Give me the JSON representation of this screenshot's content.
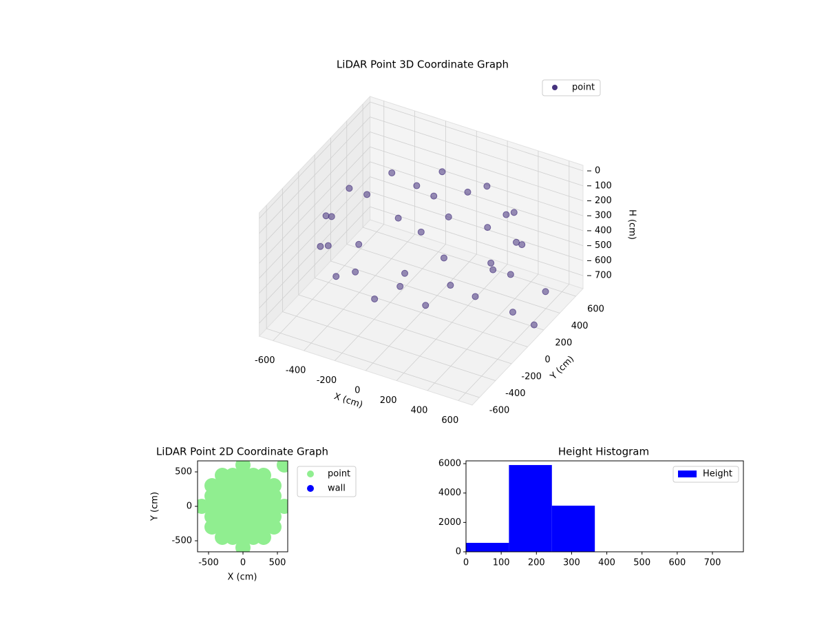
{
  "chart_data": [
    {
      "type": "scatter3d",
      "title": "LiDAR Point 3D Coordinate Graph",
      "xlabel": "X (cm)",
      "ylabel": "Y (cm)",
      "zlabel": "H (cm)",
      "xlim": [
        -690,
        690
      ],
      "ylim": [
        -690,
        690
      ],
      "zlim": [
        -37,
        787
      ],
      "z_inverted": true,
      "xticks": [
        -600,
        -400,
        -200,
        0,
        200,
        400,
        600
      ],
      "yticks": [
        -600,
        -400,
        -200,
        0,
        200,
        400,
        600
      ],
      "zticks": [
        0,
        100,
        200,
        300,
        400,
        500,
        600,
        700
      ],
      "legend": "upper right",
      "grid": true,
      "series": [
        {
          "name": "point",
          "color": "#46327e",
          "x": [
            580,
            502,
            290,
            0,
            -290,
            -502,
            -580,
            -502,
            -290,
            0,
            290,
            502,
            541,
            396,
            145,
            -145,
            -396,
            -541,
            -541,
            -396,
            -145,
            145,
            396,
            541,
            0,
            100,
            -200,
            200,
            -300,
            300,
            50,
            -100,
            400,
            650,
            680,
            620
          ],
          "y": [
            0,
            290,
            502,
            580,
            502,
            290,
            0,
            -290,
            -502,
            -580,
            -502,
            -290,
            145,
            396,
            541,
            541,
            396,
            145,
            -145,
            -396,
            -541,
            -541,
            -396,
            -145,
            0,
            150,
            100,
            -100,
            -200,
            250,
            -300,
            350,
            100,
            300,
            100,
            -50
          ],
          "z": [
            340,
            330,
            320,
            310,
            320,
            330,
            340,
            350,
            360,
            370,
            360,
            350,
            220,
            210,
            200,
            200,
            210,
            220,
            240,
            250,
            260,
            260,
            250,
            240,
            250,
            200,
            280,
            300,
            320,
            260,
            340,
            240,
            380,
            600,
            700,
            550
          ]
        }
      ]
    },
    {
      "type": "scatter",
      "title": "LiDAR Point 2D Coordinate Graph",
      "xlabel": "X (cm)",
      "ylabel": "Y (cm)",
      "xlim": [
        -660,
        650
      ],
      "ylim": [
        -660,
        660
      ],
      "xticks": [
        -500,
        0,
        500
      ],
      "yticks": [
        -500,
        0,
        500
      ],
      "legend": "outside right",
      "series": [
        {
          "name": "point",
          "color": "#90ee90",
          "x": [
            -600,
            -450,
            -450,
            -450,
            -450,
            -450,
            -300,
            -300,
            -300,
            -300,
            -300,
            -300,
            -300,
            -150,
            -150,
            -150,
            -150,
            -150,
            -150,
            -150,
            0,
            0,
            0,
            0,
            0,
            0,
            0,
            0,
            0,
            150,
            150,
            150,
            150,
            150,
            150,
            150,
            300,
            300,
            300,
            300,
            300,
            300,
            300,
            450,
            450,
            450,
            450,
            450,
            600,
            600
          ],
          "y": [
            0,
            -300,
            -150,
            0,
            150,
            300,
            -450,
            -300,
            -150,
            0,
            150,
            300,
            450,
            -450,
            -300,
            -150,
            0,
            150,
            300,
            450,
            -600,
            -450,
            -300,
            -150,
            0,
            150,
            300,
            450,
            600,
            -450,
            -300,
            -150,
            0,
            150,
            300,
            450,
            -450,
            -300,
            -150,
            0,
            150,
            300,
            450,
            -300,
            -150,
            0,
            150,
            300,
            0,
            600
          ]
        },
        {
          "name": "wall",
          "color": "#0000ff",
          "x": [],
          "y": []
        }
      ]
    },
    {
      "type": "histogram",
      "title": "Height Histogram",
      "bins": [
        0,
        122,
        244,
        366,
        488,
        610,
        732
      ],
      "values": [
        609,
        5906,
        3140,
        0,
        0,
        0
      ],
      "xlim": [
        0,
        788
      ],
      "ylim": [
        0,
        6190
      ],
      "xticks": [
        0,
        100,
        200,
        300,
        400,
        500,
        600,
        700
      ],
      "yticks": [
        0,
        2000,
        4000,
        6000
      ],
      "legend": "upper right",
      "series_name": "Height",
      "color": "#0000ff"
    }
  ]
}
